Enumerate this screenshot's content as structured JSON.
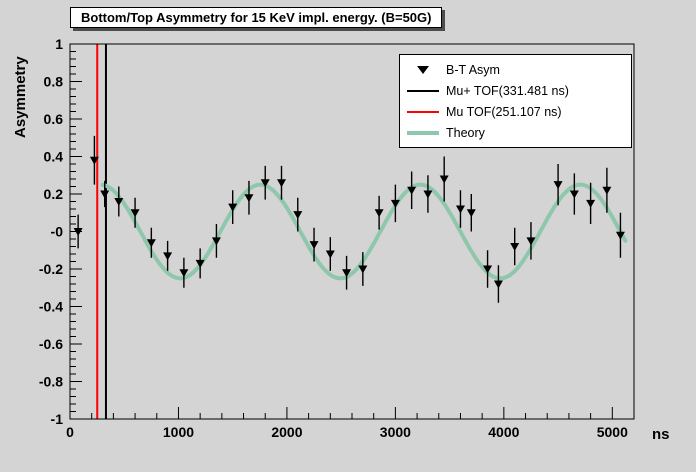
{
  "colors": {
    "canvas_bg": "#d4d4d4",
    "frame_border": "#000000",
    "text": "#000000",
    "legend_bg": "#ffffff",
    "title_bg": "#ffffff",
    "theory": "#8FC7AD",
    "mu_plus_line": "#000000",
    "mu_line": "#ff0000",
    "marker": "#000000"
  },
  "chart_data": {
    "type": "scatter",
    "title": "Bottom/Top Asymmetry for 15 KeV impl. energy. (B=50G)",
    "xlabel": "ns",
    "ylabel": "Asymmetry",
    "grid": false,
    "legend_position": "top-right",
    "x_axis": {
      "min": 0,
      "max": 5200,
      "major_tick_step": 1000,
      "minor_tick_step": 200,
      "tick_labels": [
        {
          "value": 0,
          "label": "0"
        },
        {
          "value": 1000,
          "label": "1000"
        },
        {
          "value": 2000,
          "label": "2000"
        },
        {
          "value": 3000,
          "label": "3000"
        },
        {
          "value": 4000,
          "label": "4000"
        },
        {
          "value": 5000,
          "label": "5000"
        }
      ]
    },
    "y_axis": {
      "min": -1,
      "max": 1,
      "major_tick_step": 0.2,
      "minor_tick_step": 0.04,
      "tick_labels": [
        {
          "value": 1,
          "label": "1"
        },
        {
          "value": 0.8,
          "label": "0.8"
        },
        {
          "value": 0.6,
          "label": "0.6"
        },
        {
          "value": 0.4,
          "label": "0.4"
        },
        {
          "value": 0.2,
          "label": "0.2"
        },
        {
          "value": 0,
          "label": "-0"
        },
        {
          "value": -0.2,
          "label": "-0.2"
        },
        {
          "value": -0.4,
          "label": "-0.4"
        },
        {
          "value": -0.6,
          "label": "-0.6"
        },
        {
          "value": -0.8,
          "label": "-0.8"
        },
        {
          "value": -1,
          "label": "-1"
        }
      ]
    },
    "series": [
      {
        "name": "B-T Asym",
        "kind": "points",
        "marker": "triangle-down",
        "color": "#000000",
        "points": [
          [
            75,
            0.0,
            0.09
          ],
          [
            225,
            0.38,
            0.13
          ],
          [
            320,
            0.2,
            0.07
          ],
          [
            450,
            0.16,
            0.08
          ],
          [
            600,
            0.1,
            0.08
          ],
          [
            750,
            -0.06,
            0.08
          ],
          [
            900,
            -0.13,
            0.08
          ],
          [
            1050,
            -0.22,
            0.08
          ],
          [
            1200,
            -0.17,
            0.08
          ],
          [
            1350,
            -0.05,
            0.09
          ],
          [
            1500,
            0.13,
            0.09
          ],
          [
            1650,
            0.18,
            0.09
          ],
          [
            1800,
            0.26,
            0.09
          ],
          [
            1950,
            0.26,
            0.09
          ],
          [
            2100,
            0.09,
            0.09
          ],
          [
            2250,
            -0.07,
            0.09
          ],
          [
            2400,
            -0.12,
            0.09
          ],
          [
            2550,
            -0.22,
            0.09
          ],
          [
            2700,
            -0.2,
            0.09
          ],
          [
            2850,
            0.1,
            0.09
          ],
          [
            3000,
            0.15,
            0.1
          ],
          [
            3150,
            0.22,
            0.1
          ],
          [
            3300,
            0.2,
            0.1
          ],
          [
            3450,
            0.28,
            0.12
          ],
          [
            3600,
            0.12,
            0.1
          ],
          [
            3700,
            0.1,
            0.1
          ],
          [
            3850,
            -0.2,
            0.1
          ],
          [
            3950,
            -0.28,
            0.1
          ],
          [
            4100,
            -0.08,
            0.1
          ],
          [
            4250,
            -0.05,
            0.1
          ],
          [
            4500,
            0.25,
            0.11
          ],
          [
            4650,
            0.2,
            0.11
          ],
          [
            4800,
            0.15,
            0.11
          ],
          [
            4950,
            0.22,
            0.12
          ],
          [
            5075,
            -0.02,
            0.12
          ]
        ]
      },
      {
        "name": "Mu+ TOF(331.481 ns)",
        "kind": "vline",
        "x": 331.481,
        "color": "#000000",
        "width": 2
      },
      {
        "name": "Mu TOF(251.107 ns)",
        "kind": "vline",
        "x": 251.107,
        "color": "#ff0000",
        "width": 2
      },
      {
        "name": "Theory",
        "kind": "cosine",
        "amplitude": 0.25,
        "period_ns": 1475,
        "phase_ns": 280,
        "offset": 0,
        "t_start": 300,
        "t_end": 5120,
        "color": "#8FC7AD",
        "width": 4
      }
    ],
    "legend": {
      "items": [
        {
          "label": "B-T Asym",
          "swatch": "triangle-down",
          "color": "#000000",
          "weight": 2
        },
        {
          "label": "Mu+ TOF(331.481 ns)",
          "swatch": "line",
          "color": "#000000",
          "weight": 2
        },
        {
          "label": "Mu  TOF(251.107 ns)",
          "swatch": "line",
          "color": "#ff0000",
          "weight": 2
        },
        {
          "label": "Theory",
          "swatch": "line",
          "color": "#8FC7AD",
          "weight": 4
        }
      ]
    }
  }
}
